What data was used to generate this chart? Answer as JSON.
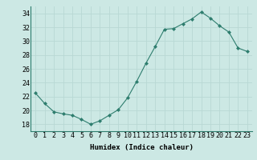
{
  "x": [
    0,
    1,
    2,
    3,
    4,
    5,
    6,
    7,
    8,
    9,
    10,
    11,
    12,
    13,
    14,
    15,
    16,
    17,
    18,
    19,
    20,
    21,
    22,
    23
  ],
  "y": [
    22.5,
    21.0,
    19.8,
    19.5,
    19.3,
    18.7,
    18.0,
    18.5,
    19.3,
    20.1,
    21.8,
    24.2,
    26.8,
    29.2,
    31.7,
    31.8,
    32.5,
    33.2,
    34.2,
    33.3,
    32.2,
    31.3,
    29.0,
    28.5
  ],
  "line_color": "#2e7d6e",
  "marker": "D",
  "marker_size": 2.0,
  "bg_color": "#cce8e4",
  "grid_color": "#b8d8d4",
  "xlabel": "Humidex (Indice chaleur)",
  "ylim": [
    17,
    35
  ],
  "xlim": [
    -0.5,
    23.5
  ],
  "yticks": [
    18,
    20,
    22,
    24,
    26,
    28,
    30,
    32,
    34
  ],
  "xtick_labels": [
    "0",
    "1",
    "2",
    "3",
    "4",
    "5",
    "6",
    "7",
    "8",
    "9",
    "10",
    "11",
    "12",
    "13",
    "14",
    "15",
    "16",
    "17",
    "18",
    "19",
    "20",
    "21",
    "22",
    "23"
  ],
  "label_fontsize": 6.5,
  "tick_fontsize": 6.0
}
